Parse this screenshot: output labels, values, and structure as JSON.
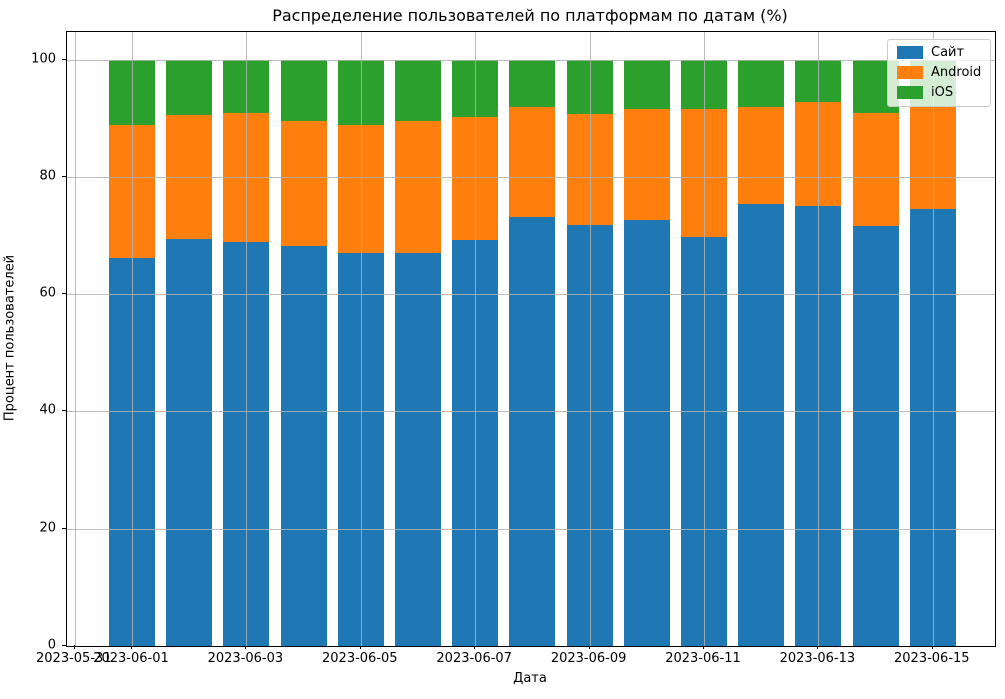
{
  "chart_data": {
    "type": "bar",
    "stacked": true,
    "title": "Распределение пользователей по платформам по датам (%)",
    "xlabel": "Дата",
    "ylabel": "Процент пользователей",
    "categories": [
      "2023-06-01",
      "2023-06-02",
      "2023-06-03",
      "2023-06-04",
      "2023-06-05",
      "2023-06-06",
      "2023-06-07",
      "2023-06-08",
      "2023-06-09",
      "2023-06-10",
      "2023-06-11",
      "2023-06-12",
      "2023-06-13",
      "2023-06-14",
      "2023-06-15"
    ],
    "series": [
      {
        "name": "Сайт",
        "color": "#1f77b4",
        "values": [
          66.1,
          69.4,
          68.9,
          68.2,
          67.0,
          67.1,
          69.3,
          73.1,
          71.8,
          72.7,
          69.8,
          75.3,
          75.1,
          71.7,
          74.6
        ]
      },
      {
        "name": "Android",
        "color": "#ff7f0e",
        "values": [
          22.7,
          21.2,
          22.0,
          21.4,
          21.8,
          22.5,
          20.9,
          18.8,
          18.9,
          18.8,
          21.8,
          16.7,
          17.7,
          19.2,
          17.3
        ]
      },
      {
        "name": "iOS",
        "color": "#2ca02c",
        "values": [
          11.2,
          9.4,
          9.1,
          10.4,
          11.2,
          10.4,
          9.8,
          8.1,
          9.3,
          8.5,
          8.4,
          8.0,
          7.2,
          9.1,
          8.1
        ]
      }
    ],
    "ylim": [
      0,
      104.7
    ],
    "y_ticks": [
      0,
      20,
      40,
      60,
      80,
      100
    ],
    "x_ticks": [
      {
        "label": "2023-05-31",
        "day": -1
      },
      {
        "label": "2023-06-01",
        "day": 0
      },
      {
        "label": "2023-06-03",
        "day": 2
      },
      {
        "label": "2023-06-05",
        "day": 4
      },
      {
        "label": "2023-06-07",
        "day": 6
      },
      {
        "label": "2023-06-09",
        "day": 8
      },
      {
        "label": "2023-06-11",
        "day": 10
      },
      {
        "label": "2023-06-13",
        "day": 12
      },
      {
        "label": "2023-06-15",
        "day": 14
      }
    ],
    "grid": true,
    "grid_color": "#b0b0b0",
    "legend_position": "upper right",
    "background": "#ffffff"
  }
}
